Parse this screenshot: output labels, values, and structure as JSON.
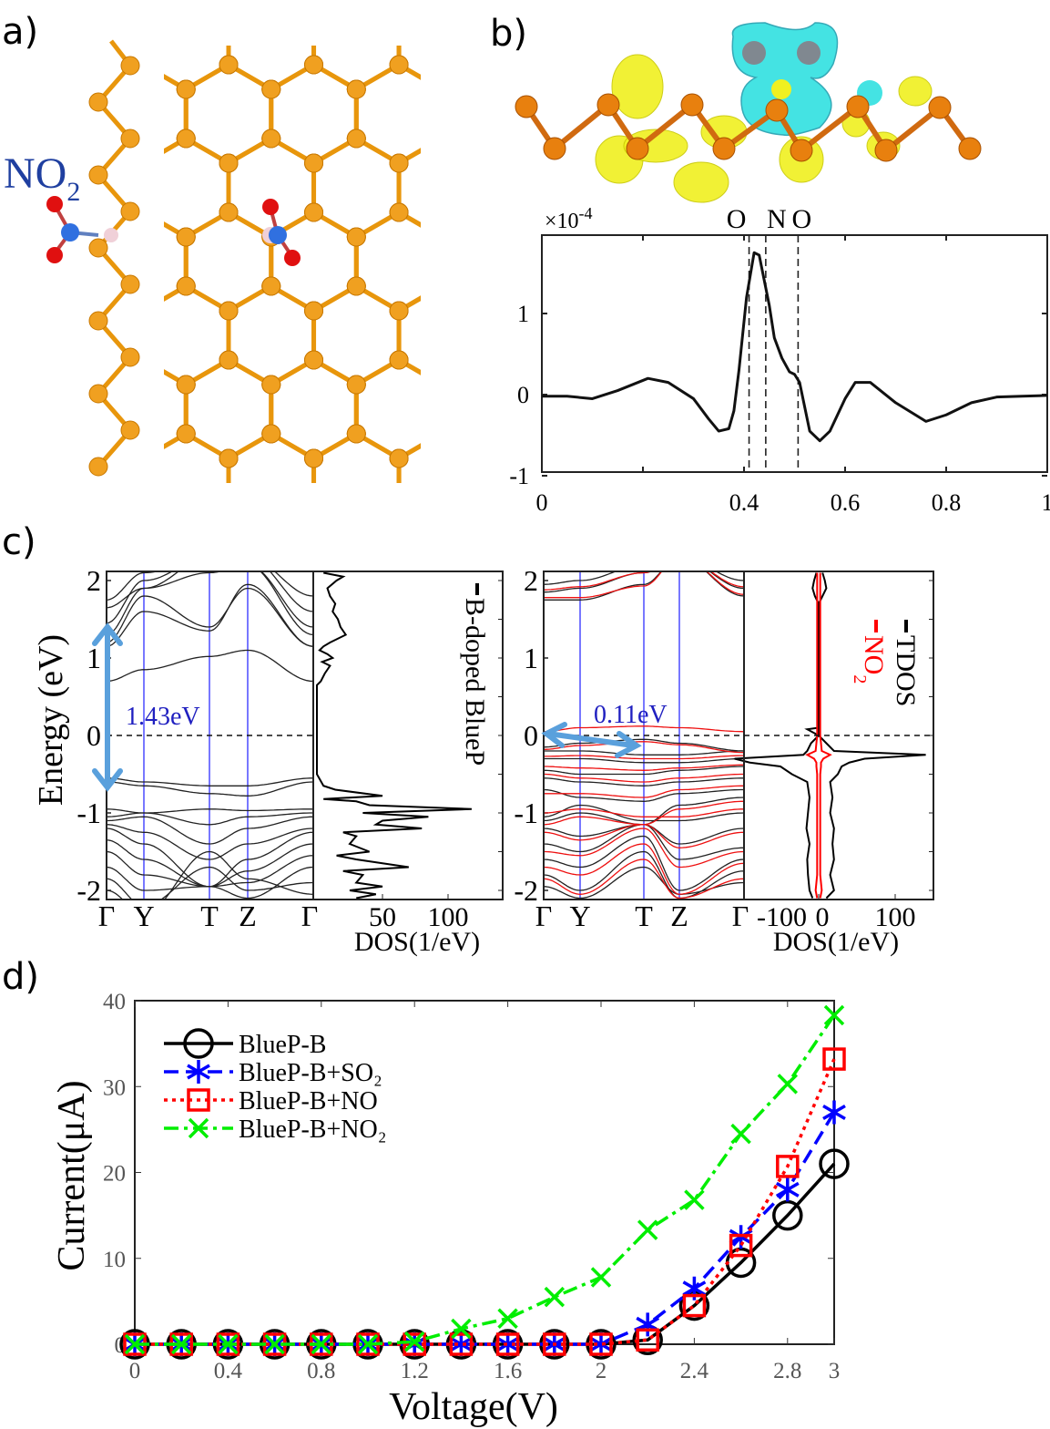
{
  "panels": {
    "a": {
      "label": "a)",
      "molecule_label": "NO",
      "molecule_sub": "2"
    },
    "b": {
      "label": "b)"
    },
    "c": {
      "label": "c)"
    },
    "d": {
      "label": "d)"
    }
  },
  "colors": {
    "phosphorus": "#f0a020",
    "nitrogen": "#3070e0",
    "oxygen": "#e01010",
    "boron": "#f0d0d8",
    "charge_accumulation": "#f0f020",
    "charge_depletion": "#30e0e0",
    "kpath_line": "#3030ff",
    "gap_arrow": "#5aa0dc",
    "gap_text": "#2020c0"
  },
  "chart_data": [
    {
      "panel": "b",
      "type": "line",
      "scale_label": "×10",
      "scale_exp": "-4",
      "xlim": [
        0,
        1
      ],
      "ylim": [
        -1,
        2
      ],
      "xticks": [
        0,
        0.2,
        0.4,
        0.6,
        0.8,
        1
      ],
      "xtick_labels": [
        "0",
        "",
        "0.4",
        "0.6",
        "0.8",
        "1"
      ],
      "yticks": [
        -1,
        0,
        1
      ],
      "ytick_labels": [
        "-1",
        "0",
        "1"
      ],
      "atom_markers": [
        {
          "label": "O",
          "x": 0.41
        },
        {
          "label": "N",
          "x": 0.443
        },
        {
          "label": "O",
          "x": 0.507
        }
      ],
      "x": [
        0,
        0.05,
        0.1,
        0.15,
        0.21,
        0.25,
        0.3,
        0.33,
        0.35,
        0.37,
        0.38,
        0.39,
        0.405,
        0.42,
        0.43,
        0.45,
        0.46,
        0.475,
        0.49,
        0.5,
        0.51,
        0.53,
        0.55,
        0.57,
        0.6,
        0.62,
        0.65,
        0.7,
        0.76,
        0.8,
        0.85,
        0.9,
        0.95,
        1
      ],
      "y": [
        -0.02,
        -0.02,
        -0.05,
        0.05,
        0.2,
        0.15,
        -0.05,
        -0.3,
        -0.45,
        -0.42,
        -0.2,
        0.3,
        1.2,
        1.75,
        1.72,
        1.1,
        0.7,
        0.45,
        0.28,
        0.25,
        0.15,
        -0.45,
        -0.57,
        -0.45,
        -0.05,
        0.15,
        0.15,
        -0.1,
        -0.33,
        -0.25,
        -0.1,
        -0.03,
        -0.02,
        -0.01
      ]
    },
    {
      "panel": "c-left-bands",
      "type": "line",
      "ylabel": "Energy (eV)",
      "ylim": [
        -2.12,
        2.12
      ],
      "yticks": [
        -2,
        -1,
        0,
        1,
        2
      ],
      "ytick_labels": [
        "-2",
        "-1",
        "0",
        "1",
        "2"
      ],
      "kpoints": [
        "Γ",
        "Y",
        "T",
        "Z",
        "Γ"
      ],
      "gap_label": "1.43eV",
      "bands": [
        [
          0.7,
          0.85,
          1.02,
          1.1,
          0.7
        ],
        [
          1.15,
          1.6,
          1.35,
          1.95,
          1.15
        ],
        [
          1.2,
          1.8,
          1.4,
          1.9,
          1.15
        ],
        [
          1.3,
          1.9,
          2.1,
          2.2,
          1.3
        ],
        [
          1.45,
          2.0,
          2.3,
          2.2,
          1.4
        ],
        [
          1.65,
          1.9,
          2.3,
          2.3,
          1.6
        ],
        [
          1.75,
          2.1,
          2.3,
          2.3,
          1.8
        ],
        [
          -0.55,
          -0.6,
          -0.65,
          -0.65,
          -0.55
        ],
        [
          -0.6,
          -0.65,
          -0.75,
          -0.78,
          -0.6
        ],
        [
          -0.95,
          -1.0,
          -0.95,
          -0.97,
          -0.95
        ],
        [
          -1.05,
          -1.0,
          -1.15,
          -1.05,
          -1.0
        ],
        [
          -1.1,
          -1.05,
          -1.4,
          -1.2,
          -1.05
        ],
        [
          -1.15,
          -1.25,
          -1.6,
          -1.4,
          -1.2
        ],
        [
          -1.2,
          -1.4,
          -1.95,
          -1.6,
          -1.25
        ],
        [
          -1.35,
          -1.6,
          -1.95,
          -1.75,
          -1.4
        ],
        [
          -1.5,
          -1.8,
          -1.95,
          -1.9,
          -1.55
        ],
        [
          -1.7,
          -2.0,
          -1.95,
          -2.1,
          -1.7
        ],
        [
          -1.85,
          -2.2,
          -1.7,
          -2.0,
          -1.9
        ],
        [
          -2.0,
          -2.3,
          -1.5,
          -1.85,
          -2.05
        ]
      ]
    },
    {
      "panel": "c-left-dos",
      "type": "line",
      "xlabel": "DOS(1/eV)",
      "xlim": [
        -3,
        141
      ],
      "xticks": [
        50,
        100
      ],
      "xtick_labels": [
        "50",
        "100"
      ],
      "legend": [
        "B-doped BlueP"
      ],
      "energy": [
        2.1,
        2.05,
        2.0,
        1.9,
        1.8,
        1.7,
        1.6,
        1.5,
        1.4,
        1.3,
        1.2,
        1.15,
        1.1,
        1.05,
        1.0,
        0.95,
        0.9,
        0.8,
        0.7,
        0.65,
        0.3,
        0,
        -0.5,
        -0.65,
        -0.7,
        -0.78,
        -0.82,
        -0.85,
        -0.9,
        -0.95,
        -1.0,
        -1.05,
        -1.1,
        -1.15,
        -1.2,
        -1.25,
        -1.3,
        -1.4,
        -1.5,
        -1.55,
        -1.6,
        -1.7,
        -1.75,
        -1.8,
        -1.9,
        -1.95,
        -2.0,
        -2.05,
        -2.1
      ],
      "dos": [
        5,
        20,
        15,
        8,
        10,
        14,
        12,
        16,
        18,
        22,
        10,
        5,
        2,
        8,
        12,
        4,
        10,
        6,
        3,
        0,
        0,
        0,
        0,
        5,
        14,
        50,
        5,
        30,
        40,
        118,
        35,
        85,
        50,
        45,
        80,
        20,
        30,
        25,
        40,
        15,
        30,
        70,
        20,
        35,
        30,
        50,
        25,
        45,
        30
      ]
    },
    {
      "panel": "c-right-bands",
      "type": "line",
      "ylim": [
        -2.12,
        2.12
      ],
      "yticks": [
        -2,
        -1,
        0,
        1,
        2
      ],
      "ytick_labels": [
        "-2",
        "-1",
        "0",
        "1",
        "2"
      ],
      "kpoints": [
        "Γ",
        "Y",
        "T",
        "Z",
        "Γ"
      ],
      "gap_label": "0.11eV",
      "bands_black": [
        [
          1.75,
          1.75,
          1.95,
          2.3,
          1.8
        ],
        [
          1.85,
          1.9,
          2.1,
          2.3,
          1.9
        ],
        [
          1.95,
          2.0,
          2.2,
          2.3,
          2.0
        ],
        [
          -0.15,
          -0.1,
          -0.05,
          -0.1,
          -0.2
        ],
        [
          -0.2,
          -0.2,
          -0.25,
          -0.25,
          -0.2
        ],
        [
          -0.3,
          -0.3,
          -0.35,
          -0.35,
          -0.3
        ],
        [
          -0.45,
          -0.5,
          -0.5,
          -0.45,
          -0.4
        ],
        [
          -0.55,
          -0.6,
          -0.65,
          -0.6,
          -0.55
        ],
        [
          -0.7,
          -0.8,
          -0.85,
          -0.75,
          -0.7
        ],
        [
          -1.05,
          -0.9,
          -1.1,
          -1.1,
          -1.0
        ],
        [
          -1.1,
          -1.0,
          -1.15,
          -0.9,
          -0.8
        ],
        [
          -1.2,
          -1.3,
          -1.15,
          -1.4,
          -1.2
        ],
        [
          -1.4,
          -1.5,
          -1.15,
          -1.6,
          -1.45
        ],
        [
          -1.6,
          -1.7,
          -1.3,
          -2.0,
          -1.6
        ],
        [
          -1.8,
          -2.0,
          -1.5,
          -2.1,
          -1.75
        ],
        [
          -1.95,
          -2.1,
          -1.7,
          -2.05,
          -1.9
        ]
      ],
      "bands_red": [
        [
          1.78,
          1.78,
          1.93,
          2.3,
          1.82
        ],
        [
          1.88,
          1.92,
          2.1,
          2.3,
          1.92
        ],
        [
          0.05,
          0.1,
          0.12,
          0.1,
          0.05
        ],
        [
          -0.18,
          -0.13,
          -0.08,
          -0.12,
          -0.22
        ],
        [
          -0.27,
          -0.26,
          -0.3,
          -0.3,
          -0.26
        ],
        [
          -0.4,
          -0.42,
          -0.45,
          -0.42,
          -0.38
        ],
        [
          -0.5,
          -0.55,
          -0.6,
          -0.55,
          -0.5
        ],
        [
          -0.75,
          -0.75,
          -0.8,
          -0.7,
          -0.65
        ],
        [
          -1.0,
          -0.95,
          -1.05,
          -1.05,
          -0.95
        ],
        [
          -1.15,
          -1.05,
          -1.15,
          -0.95,
          -0.85
        ],
        [
          -1.25,
          -1.35,
          -1.15,
          -1.45,
          -1.25
        ],
        [
          -1.5,
          -1.55,
          -1.2,
          -1.7,
          -1.5
        ],
        [
          -1.7,
          -1.8,
          -1.4,
          -2.05,
          -1.65
        ],
        [
          -1.85,
          -2.05,
          -1.6,
          -2.1,
          -1.85
        ]
      ]
    },
    {
      "panel": "c-right-dos",
      "type": "line",
      "xlabel": "DOS(1/eV)",
      "xlim": [
        -98,
        150
      ],
      "xticks": [
        -100,
        0,
        100
      ],
      "xtick_labels": [
        "-100",
        "0",
        "100"
      ],
      "legend": [
        {
          "label": "TDOS",
          "color": "#000000"
        },
        {
          "label": "NO",
          "sub": "2",
          "color": "#ff0000"
        }
      ],
      "energy": [
        2.1,
        2.0,
        1.9,
        1.8,
        1.7,
        0.1,
        0.08,
        0.0,
        -0.1,
        -0.2,
        -0.25,
        -0.3,
        -0.35,
        -0.4,
        -0.5,
        -0.6,
        -0.8,
        -1.0,
        -1.2,
        -1.4,
        -1.6,
        -1.8,
        -2.0,
        -2.1
      ],
      "tdos_up": [
        5,
        8,
        10,
        5,
        0,
        0,
        0,
        0,
        10,
        20,
        140,
        60,
        40,
        30,
        25,
        15,
        18,
        15,
        20,
        18,
        20,
        15,
        20,
        10
      ],
      "tdos_down": [
        -3,
        -6,
        -8,
        -5,
        0,
        0,
        -15,
        0,
        -10,
        -15,
        -20,
        -110,
        -90,
        -50,
        -35,
        -15,
        -12,
        -14,
        -16,
        -12,
        -15,
        -14,
        -12,
        -8
      ],
      "no2_dos": [
        2,
        2,
        2,
        2,
        2,
        2,
        2,
        2,
        3,
        4,
        15,
        6,
        3,
        3,
        2,
        2,
        2,
        2,
        2,
        2,
        2,
        2,
        4,
        2
      ]
    },
    {
      "panel": "d",
      "type": "line",
      "xlabel": "Voltage(V)",
      "ylabel": "Current(μA)",
      "xlim": [
        0,
        3
      ],
      "ylim": [
        0,
        40
      ],
      "xticks": [
        0,
        0.4,
        0.8,
        1.2,
        1.6,
        2,
        2.4,
        2.8,
        3
      ],
      "xtick_labels": [
        "0",
        "0.4",
        "0.8",
        "1.2",
        "1.6",
        "2",
        "2.4",
        "2.8",
        "3"
      ],
      "yticks": [
        0,
        10,
        20,
        30,
        40
      ],
      "ytick_labels": [
        "0",
        "10",
        "20",
        "30",
        "40"
      ],
      "legend_position": "top-left",
      "x": [
        0,
        0.2,
        0.4,
        0.6,
        0.8,
        1.0,
        1.2,
        1.4,
        1.6,
        1.8,
        2.0,
        2.2,
        2.4,
        2.6,
        2.8,
        3.0
      ],
      "series": [
        {
          "name": "BlueP-B",
          "color": "#000000",
          "marker": "circle",
          "line": "solid",
          "values": [
            0,
            0,
            0,
            0,
            0,
            0,
            0,
            0,
            0,
            0,
            0,
            0.5,
            4.5,
            9.5,
            15,
            21
          ]
        },
        {
          "name": "BlueP-B+SO₂",
          "color": "#0000ff",
          "marker": "asterisk",
          "line": "dashed",
          "values": [
            0,
            0,
            0,
            0,
            0,
            0,
            0,
            0,
            0,
            0,
            0,
            2.3,
            6.5,
            12.5,
            18,
            27
          ]
        },
        {
          "name": "BlueP-B+NO",
          "color": "#ff0000",
          "marker": "square",
          "line": "dotted",
          "values": [
            0,
            0,
            0,
            0,
            0,
            0,
            0,
            0,
            0,
            0,
            0,
            0.5,
            4.5,
            11.5,
            20.7,
            33.2
          ]
        },
        {
          "name": "BlueP-B+NO₂",
          "color": "#00ee00",
          "marker": "x",
          "line": "dashdot",
          "values": [
            0,
            0,
            0,
            0,
            0,
            0,
            0.3,
            1.8,
            3,
            5.5,
            7.8,
            13.3,
            16.8,
            24.5,
            30.3,
            38.3
          ]
        }
      ]
    }
  ]
}
